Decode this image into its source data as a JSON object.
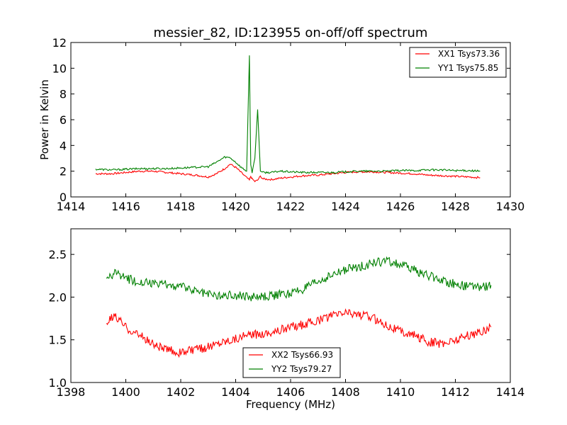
{
  "chart_data": [
    {
      "type": "line",
      "title": "messier_82, ID:123955 on-off/off spectrum",
      "xlabel": "",
      "ylabel": "Power in Kelvin",
      "xlim": [
        1414,
        1430
      ],
      "ylim": [
        0,
        12
      ],
      "x_ticks": [
        "1414",
        "1416",
        "1418",
        "1420",
        "1422",
        "1424",
        "1426",
        "1428",
        "1430"
      ],
      "y_ticks": [
        "0",
        "2",
        "4",
        "6",
        "8",
        "10",
        "12"
      ],
      "legend_position": "top-right",
      "series": [
        {
          "name": "XX1 Tsys73.36",
          "color": "#ff0000",
          "x": [
            1414.9,
            1415.5,
            1416.0,
            1416.5,
            1417.0,
            1417.5,
            1418.0,
            1418.5,
            1419.0,
            1419.3,
            1419.6,
            1419.8,
            1420.0,
            1420.2,
            1420.4,
            1420.5,
            1420.55,
            1420.6,
            1420.7,
            1420.8,
            1420.9,
            1421.0,
            1421.3,
            1421.6,
            1422.0,
            1422.5,
            1423.0,
            1423.5,
            1424.0,
            1424.5,
            1425.0,
            1425.5,
            1426.0,
            1426.5,
            1427.0,
            1427.5,
            1428.0,
            1428.5,
            1428.9
          ],
          "values": [
            1.8,
            1.8,
            1.9,
            2.0,
            2.0,
            1.9,
            1.8,
            1.7,
            1.55,
            1.8,
            2.2,
            2.55,
            2.3,
            1.9,
            1.5,
            1.3,
            1.6,
            1.4,
            1.2,
            1.3,
            1.6,
            1.4,
            1.35,
            1.45,
            1.55,
            1.65,
            1.7,
            1.8,
            1.9,
            1.95,
            1.95,
            1.9,
            1.85,
            1.8,
            1.7,
            1.65,
            1.6,
            1.55,
            1.5
          ]
        },
        {
          "name": "YY1 Tsys75.85",
          "color": "#008000",
          "x": [
            1414.9,
            1415.5,
            1416.0,
            1416.5,
            1417.0,
            1417.5,
            1418.0,
            1418.5,
            1419.0,
            1419.3,
            1419.6,
            1419.8,
            1420.0,
            1420.2,
            1420.4,
            1420.5,
            1420.55,
            1420.6,
            1420.7,
            1420.8,
            1420.9,
            1421.0,
            1421.3,
            1421.6,
            1422.0,
            1422.5,
            1423.0,
            1423.5,
            1424.0,
            1424.5,
            1425.0,
            1425.5,
            1426.0,
            1426.5,
            1427.0,
            1427.5,
            1428.0,
            1428.5,
            1428.9
          ],
          "values": [
            2.15,
            2.1,
            2.15,
            2.2,
            2.2,
            2.2,
            2.25,
            2.3,
            2.35,
            2.7,
            3.1,
            3.05,
            2.7,
            2.3,
            2.0,
            11.0,
            2.5,
            1.9,
            3.0,
            6.8,
            2.0,
            1.9,
            1.9,
            2.0,
            1.95,
            1.9,
            1.9,
            1.9,
            1.95,
            2.0,
            2.0,
            2.0,
            2.05,
            2.05,
            2.1,
            2.1,
            2.05,
            2.05,
            2.0
          ]
        }
      ]
    },
    {
      "type": "line",
      "title": "",
      "xlabel": "Frequency (MHz)",
      "ylabel": "",
      "xlim": [
        1398,
        1414
      ],
      "ylim": [
        1.0,
        2.8
      ],
      "x_ticks": [
        "1398",
        "1400",
        "1402",
        "1404",
        "1406",
        "1408",
        "1410",
        "1412",
        "1414"
      ],
      "y_ticks": [
        "1.0",
        "1.5",
        "2.0",
        "2.5"
      ],
      "legend_position": "bottom-center",
      "series": [
        {
          "name": "XX2 Tsys66.93",
          "color": "#ff0000",
          "x": [
            1399.3,
            1399.6,
            1400.0,
            1400.5,
            1401.0,
            1401.5,
            1402.0,
            1402.5,
            1403.0,
            1403.5,
            1404.0,
            1404.5,
            1405.0,
            1405.5,
            1406.0,
            1406.5,
            1407.0,
            1407.5,
            1408.0,
            1408.5,
            1409.0,
            1409.5,
            1410.0,
            1410.5,
            1411.0,
            1411.5,
            1412.0,
            1412.5,
            1413.0,
            1413.3
          ],
          "values": [
            1.7,
            1.78,
            1.65,
            1.55,
            1.45,
            1.38,
            1.35,
            1.38,
            1.42,
            1.48,
            1.52,
            1.55,
            1.58,
            1.6,
            1.65,
            1.68,
            1.72,
            1.78,
            1.82,
            1.8,
            1.75,
            1.68,
            1.6,
            1.55,
            1.48,
            1.45,
            1.5,
            1.55,
            1.6,
            1.65
          ]
        },
        {
          "name": "YY2 Tsys79.27",
          "color": "#008000",
          "x": [
            1399.3,
            1399.6,
            1400.0,
            1400.5,
            1401.0,
            1401.5,
            1402.0,
            1402.5,
            1403.0,
            1403.5,
            1404.0,
            1404.5,
            1405.0,
            1405.5,
            1406.0,
            1406.5,
            1407.0,
            1407.5,
            1408.0,
            1408.5,
            1409.0,
            1409.5,
            1410.0,
            1410.5,
            1411.0,
            1411.5,
            1412.0,
            1412.5,
            1413.0,
            1413.3
          ],
          "values": [
            2.2,
            2.28,
            2.22,
            2.18,
            2.15,
            2.15,
            2.12,
            2.08,
            2.04,
            2.02,
            2.02,
            2.0,
            2.0,
            2.02,
            2.05,
            2.1,
            2.18,
            2.25,
            2.32,
            2.35,
            2.4,
            2.42,
            2.38,
            2.32,
            2.25,
            2.2,
            2.15,
            2.12,
            2.12,
            2.14
          ]
        }
      ]
    }
  ]
}
